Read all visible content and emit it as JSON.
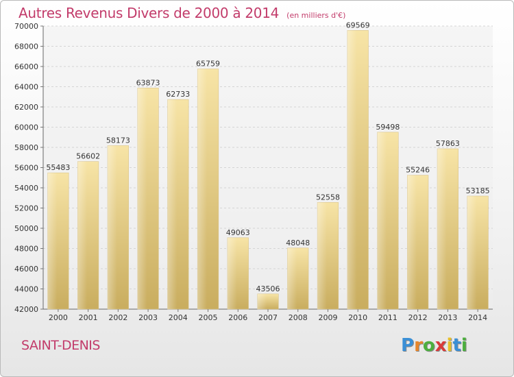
{
  "title": "Autres Revenus Divers de 2000 à 2014",
  "unit_note": "(en milliers d'€)",
  "city": "SAINT-DENIS",
  "logo": {
    "text": "Proxiti",
    "letters": [
      {
        "ch": "P",
        "color": "#3a8fd6"
      },
      {
        "ch": "r",
        "color": "#e8862a"
      },
      {
        "ch": "o",
        "color": "#4caf3e"
      },
      {
        "ch": "x",
        "color": "#d93a3a"
      },
      {
        "ch": "i",
        "color": "#e8c02a"
      },
      {
        "ch": "t",
        "color": "#3a8fd6"
      },
      {
        "ch": "i",
        "color": "#4caf3e"
      }
    ]
  },
  "colors": {
    "bar_light": "#f7e4a6",
    "bar_dark": "#c9ad5f",
    "accent": "#c23b6a"
  },
  "chart_data": {
    "type": "bar",
    "title": "Autres Revenus Divers de 2000 à 2014",
    "categories": [
      "2000",
      "2001",
      "2002",
      "2003",
      "2004",
      "2005",
      "2006",
      "2007",
      "2008",
      "2009",
      "2010",
      "2011",
      "2012",
      "2013",
      "2014"
    ],
    "values": [
      55483,
      56602,
      58173,
      63873,
      62733,
      65759,
      49063,
      43506,
      48048,
      52558,
      69569,
      59498,
      55246,
      57863,
      53185
    ],
    "ylim": [
      42000,
      70000
    ],
    "yticks": [
      42000,
      44000,
      46000,
      48000,
      50000,
      52000,
      54000,
      56000,
      58000,
      60000,
      62000,
      64000,
      66000,
      68000,
      70000
    ],
    "grid": true,
    "xlabel": "",
    "ylabel": ""
  }
}
